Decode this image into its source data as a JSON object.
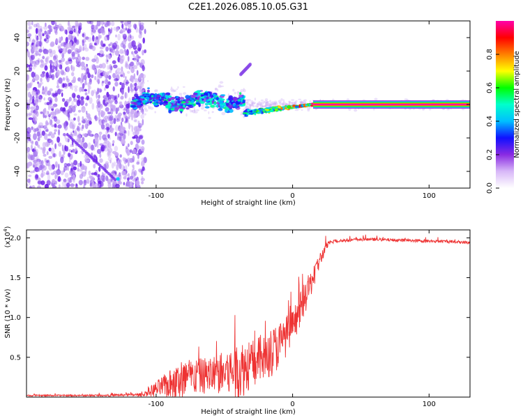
{
  "title": "C2E1.2026.085.10.05.G31",
  "colors": {
    "snr_line": "#ee3333",
    "frame": "#000000",
    "speckle_dark": "#6a1ee8",
    "speckle_light": "#c8a8f4"
  },
  "colorbar": {
    "label": "Normalized spectral amplitude",
    "ticks": [
      "0.0",
      "0.2",
      "0.4",
      "0.6",
      "0.8"
    ],
    "tick_values": [
      0.0,
      0.2,
      0.4,
      0.6,
      0.8
    ],
    "range": [
      0,
      1
    ],
    "colormap": [
      "#ffffff",
      "#d8b8f8",
      "#8a2be2",
      "#1010ff",
      "#00bfff",
      "#00ffcc",
      "#00ff00",
      "#ffff00",
      "#ff8000",
      "#ff0000",
      "#ff00aa"
    ]
  },
  "chart_data": [
    {
      "type": "heatmap",
      "title": "C2E1.2026.085.10.05.G31",
      "xlabel": "Height of straight line (km)",
      "ylabel": "Frequency (Hz)",
      "xlim": [
        -195,
        130
      ],
      "ylim": [
        -50,
        50
      ],
      "xticks": [
        -100,
        0,
        100
      ],
      "yticks": [
        -40,
        -20,
        0,
        20,
        40
      ],
      "xtick_labels": [
        "-100",
        "0",
        "100"
      ],
      "ytick_labels": [
        "-40",
        "-20",
        "0",
        "20",
        "40"
      ],
      "grid": false,
      "features": [
        {
          "name": "noise",
          "x_range": [
            -195,
            -108
          ],
          "y_range": [
            -50,
            50
          ],
          "amplitude": 0.15
        },
        {
          "name": "broad-trace",
          "x_range": [
            -118,
            -35
          ],
          "y_center": 2,
          "spread": 6,
          "amplitude": 0.45
        },
        {
          "name": "narrowing-trace",
          "x_range": [
            -35,
            15
          ],
          "y_start": -5,
          "y_end": 0,
          "amplitude": 0.7
        },
        {
          "name": "steady-carrier",
          "x_range": [
            15,
            130
          ],
          "y_center": 0,
          "amplitude": 1.0
        },
        {
          "name": "side-streak",
          "x_start": -38,
          "x_end": -31,
          "y_start": 18,
          "y_end": 24,
          "amplitude": 0.15
        }
      ]
    },
    {
      "type": "line",
      "xlabel": "Height of straight line (km)",
      "ylabel": "SNR (10 * v/v)",
      "scale_label": "(x10",
      "scale_exponent": "4",
      "xlim": [
        -195,
        130
      ],
      "ylim": [
        0,
        2.1
      ],
      "xticks": [
        -100,
        0,
        100
      ],
      "yticks": [
        0.5,
        1.0,
        1.5,
        2.0
      ],
      "xtick_labels": [
        "-100",
        "0",
        "100"
      ],
      "ytick_labels": [
        "0.5",
        "1.0",
        "1.5",
        "2.0"
      ],
      "grid": false,
      "series": [
        {
          "name": "SNR",
          "x": [
            -195,
            -150,
            -110,
            -100,
            -90,
            -80,
            -70,
            -60,
            -50,
            -40,
            -30,
            -20,
            -10,
            0,
            10,
            20,
            25,
            30,
            40,
            50,
            60,
            80,
            100,
            120,
            130
          ],
          "base": [
            0.02,
            0.02,
            0.03,
            0.1,
            0.16,
            0.22,
            0.26,
            0.28,
            0.3,
            0.33,
            0.42,
            0.5,
            0.65,
            0.88,
            1.28,
            1.72,
            1.9,
            1.96,
            1.97,
            1.98,
            1.98,
            1.97,
            1.96,
            1.95,
            1.94
          ],
          "noise": [
            0.01,
            0.01,
            0.02,
            0.1,
            0.18,
            0.28,
            0.22,
            0.24,
            0.28,
            0.4,
            0.3,
            0.32,
            0.3,
            0.22,
            0.2,
            0.1,
            0.05,
            0.03,
            0.02,
            0.02,
            0.02,
            0.02,
            0.02,
            0.02,
            0.02
          ]
        }
      ]
    }
  ]
}
